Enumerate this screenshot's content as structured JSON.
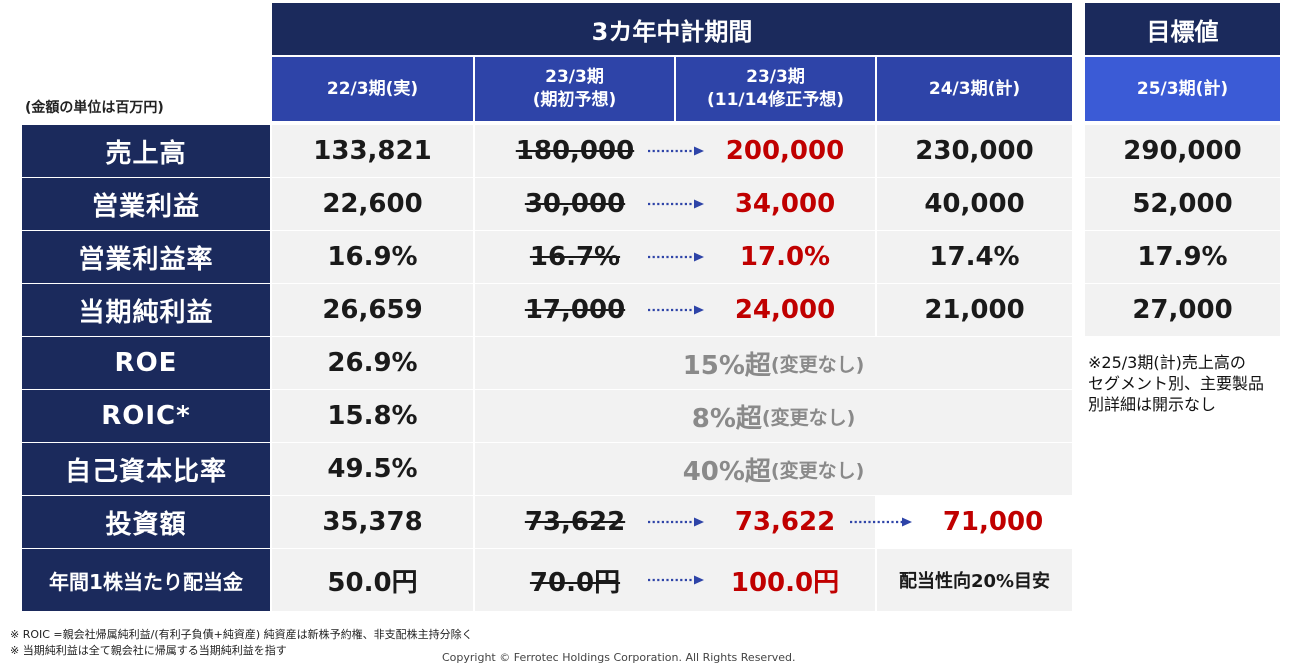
{
  "unit_note": "(金額の単位は百万円)",
  "header": {
    "group_title": "3カ年中計期間",
    "target_title": "目標値",
    "columns": [
      {
        "line1": "22/3期(実)",
        "line2": ""
      },
      {
        "line1": "23/3期",
        "line2": "(期初予想)"
      },
      {
        "line1": "23/3期",
        "line2": "(11/14修正予想)"
      },
      {
        "line1": "24/3期(計)",
        "line2": ""
      },
      {
        "line1": "25/3期(計)",
        "line2": ""
      }
    ]
  },
  "rows": [
    {
      "label": "売上高",
      "actual": "133,821",
      "initial": "180,000",
      "revised": "200,000",
      "plan24": "230,000",
      "target25": "290,000"
    },
    {
      "label": "営業利益",
      "actual": "22,600",
      "initial": "30,000",
      "revised": "34,000",
      "plan24": "40,000",
      "target25": "52,000"
    },
    {
      "label": "営業利益率",
      "actual": "16.9%",
      "initial": "16.7%",
      "revised": "17.0%",
      "plan24": "17.4%",
      "target25": "17.9%"
    },
    {
      "label": "当期純利益",
      "actual": "26,659",
      "initial": "17,000",
      "revised": "24,000",
      "plan24": "21,000",
      "target25": "27,000"
    },
    {
      "label": "ROE",
      "actual": "26.9%",
      "merged_main": "15%超",
      "merged_suffix": "(変更なし)"
    },
    {
      "label": "ROIC*",
      "actual": "15.8%",
      "merged_main": "8%超",
      "merged_suffix": "(変更なし)"
    },
    {
      "label": "自己資本比率",
      "actual": "49.5%",
      "merged_main": "40%超",
      "merged_suffix": "(変更なし)"
    },
    {
      "label": "投資額",
      "actual": "35,378",
      "initial": "73,622",
      "revised": "73,622",
      "plan24": "71,000"
    },
    {
      "label": "年間1株当たり配当金",
      "actual": "50.0円",
      "initial": "70.0円",
      "revised": "100.0円",
      "plan24": "配当性向20%目安"
    }
  ],
  "side_note": [
    "※25/3期(計)売上高の",
    "セグメント別、主要製品",
    "別詳細は開示なし"
  ],
  "footnotes": [
    "※  ROIC =親会社帰属純利益/(有利子負債+純資産)   純資産は新株予約権、非支配株主持分除く",
    "※  当期純利益は全て親会社に帰属する当期純利益を指す"
  ],
  "copyright": "Copyright © Ferrotec Holdings Corporation. All Rights Reserved.",
  "colors": {
    "navy": "#1b2a5c",
    "blue": "#2e44a8",
    "red": "#c00000",
    "gray": "#8a8a8a",
    "cell_bg": "#f2f2f2"
  },
  "icons": {
    "arrow": "dotted-right-arrow-icon"
  }
}
